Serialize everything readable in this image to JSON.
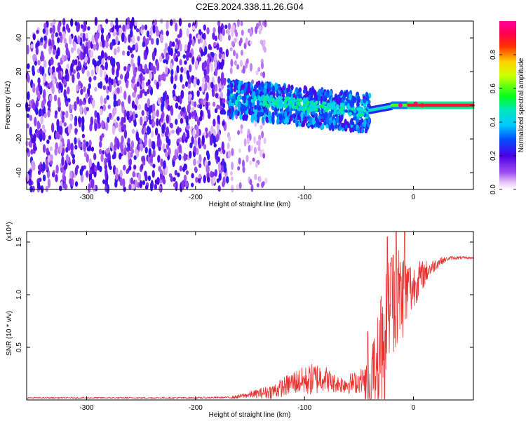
{
  "figure": {
    "title": "C2E3.2024.338.11.26.G04"
  },
  "chart_data": [
    {
      "type": "heatmap",
      "xlabel": "Height of straight line (km)",
      "ylabel": "Frequency (Hz)",
      "xlim": [
        -355,
        55
      ],
      "ylim": [
        -50,
        50
      ],
      "x_ticks": [
        -300,
        -200,
        -100,
        0
      ],
      "x_tick_labels": [
        "-300",
        "-200",
        "-100",
        "0"
      ],
      "y_ticks": [
        -40,
        -20,
        0,
        20,
        40
      ],
      "y_tick_labels": [
        "-40",
        "-20",
        "0",
        "20",
        "40"
      ],
      "colorbar": {
        "label": "Normalized spectral amplitude",
        "range": [
          0,
          1
        ],
        "ticks": [
          0.0,
          0.2,
          0.4,
          0.6,
          0.8
        ],
        "tick_labels": [
          "0.0",
          "0.2",
          "0.4",
          "0.6",
          "0.8"
        ],
        "colormap": "rainbow (white-violet-blue-cyan-green-yellow-red-magenta)"
      },
      "regions": [
        {
          "x": [
            -355,
            -170
          ],
          "freq": [
            -50,
            50
          ],
          "amplitude": "0.1-0.25",
          "pattern": "scattered noise"
        },
        {
          "x": [
            -170,
            -135
          ],
          "freq": [
            -50,
            50
          ],
          "amplitude": "0.05-0.15",
          "pattern": "sparse noise"
        },
        {
          "x": [
            -170,
            -40
          ],
          "freq": [
            -10,
            12
          ],
          "amplitude": "0.2-0.5",
          "pattern": "concentrated band near 0 Hz, drifting to about -5 Hz"
        },
        {
          "x": [
            -40,
            55
          ],
          "freq": [
            -2,
            2
          ],
          "amplitude": "0.8-1.0",
          "pattern": "narrow line at about 0 Hz"
        }
      ],
      "grid": false
    },
    {
      "type": "line",
      "xlabel": "Height of straight line (km)",
      "ylabel": "SNR (10 * v/v)",
      "y_multiplier": "(x10⁴)",
      "xlim": [
        -355,
        55
      ],
      "ylim": [
        0,
        1.6
      ],
      "x_ticks": [
        -300,
        -200,
        -100,
        0
      ],
      "x_tick_labels": [
        "-300",
        "-200",
        "-100",
        "0"
      ],
      "y_ticks": [
        0.5,
        1.0,
        1.5
      ],
      "y_tick_labels": [
        "0.5",
        "1.0",
        "1.5"
      ],
      "color": "#e8322f",
      "series_points": [
        [
          -355,
          0.02
        ],
        [
          -300,
          0.02
        ],
        [
          -250,
          0.02
        ],
        [
          -200,
          0.02
        ],
        [
          -165,
          0.025
        ],
        [
          -150,
          0.05
        ],
        [
          -130,
          0.08
        ],
        [
          -120,
          0.12
        ],
        [
          -110,
          0.17
        ],
        [
          -100,
          0.18
        ],
        [
          -90,
          0.2
        ],
        [
          -82,
          0.22
        ],
        [
          -75,
          0.16
        ],
        [
          -65,
          0.15
        ],
        [
          -55,
          0.16
        ],
        [
          -45,
          0.2
        ],
        [
          -38,
          0.25
        ],
        [
          -32,
          0.45
        ],
        [
          -27,
          0.7
        ],
        [
          -22,
          0.9
        ],
        [
          -17,
          1.0
        ],
        [
          -12,
          1.0
        ],
        [
          -6,
          1.02
        ],
        [
          0,
          1.08
        ],
        [
          6,
          1.16
        ],
        [
          12,
          1.22
        ],
        [
          18,
          1.27
        ],
        [
          25,
          1.32
        ],
        [
          35,
          1.35
        ],
        [
          45,
          1.35
        ],
        [
          55,
          1.35
        ]
      ],
      "noise_amplitude": [
        [
          -355,
          0.006
        ],
        [
          -170,
          0.008
        ],
        [
          -150,
          0.03
        ],
        [
          -120,
          0.09
        ],
        [
          -90,
          0.16
        ],
        [
          -70,
          0.08
        ],
        [
          -45,
          0.12
        ],
        [
          -30,
          0.45
        ],
        [
          -15,
          0.55
        ],
        [
          0,
          0.22
        ],
        [
          15,
          0.08
        ],
        [
          30,
          0.02
        ],
        [
          55,
          0.01
        ]
      ],
      "spikes": [
        [
          -24,
          1.55
        ],
        [
          -20,
          1.35
        ],
        [
          -16,
          1.65
        ],
        [
          -13,
          1.2
        ],
        [
          -8,
          1.62
        ],
        [
          -4,
          1.25
        ],
        [
          -30,
          0.95
        ],
        [
          -42,
          0.65
        ]
      ],
      "grid": false
    }
  ]
}
